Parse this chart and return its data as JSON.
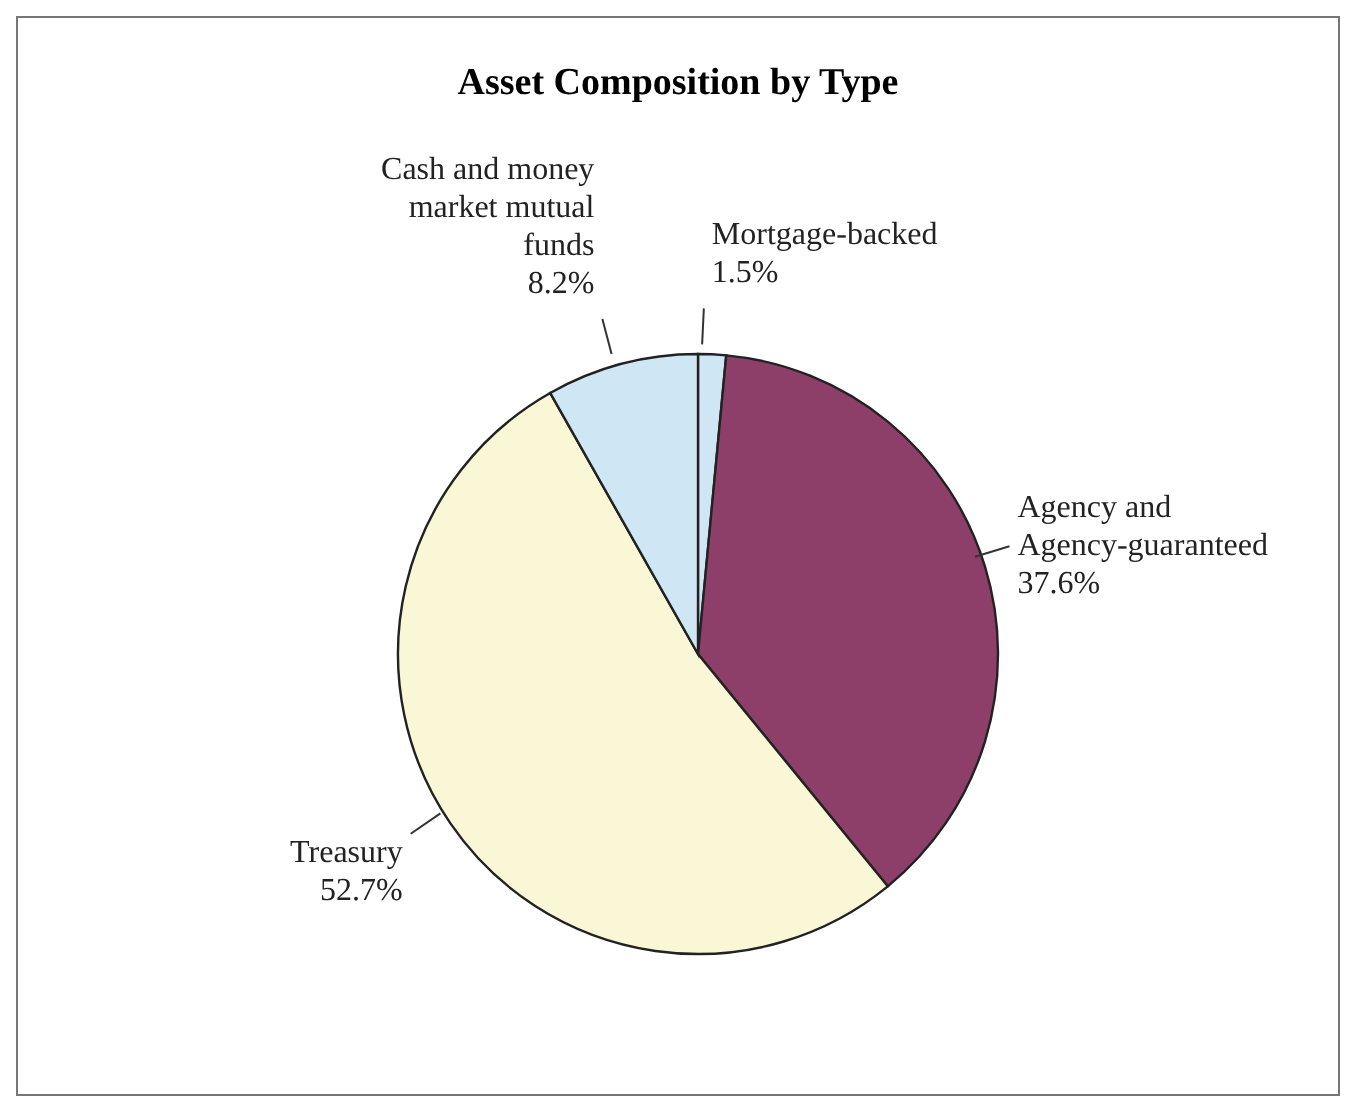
{
  "chart_data": {
    "type": "pie",
    "title": "Asset Composition by Type",
    "categories": [
      "Mortgage-backed",
      "Agency and Agency-guaranteed",
      "Treasury",
      "Cash and money market mutual funds"
    ],
    "values": [
      1.5,
      37.6,
      52.7,
      8.2
    ],
    "value_labels": [
      "1.5%",
      "37.6%",
      "52.7%",
      "8.2%"
    ],
    "colors": [
      "#cfe6f5",
      "#8e3f69",
      "#faf7d6",
      "#cfe6f5"
    ]
  }
}
